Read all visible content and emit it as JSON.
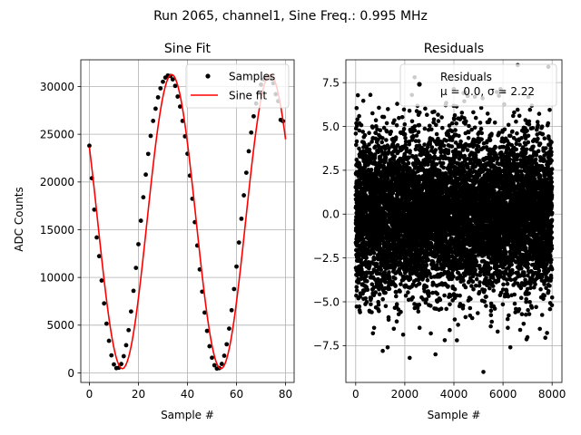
{
  "figure": {
    "suptitle": "Run 2065, channel1, Sine Freq.: 0.995 MHz"
  },
  "chart_data": [
    {
      "type": "line",
      "title": "Sine Fit",
      "xlabel": "Sample #",
      "ylabel": "ADC Counts",
      "xlim": [
        -3.5,
        83.5
      ],
      "ylim": [
        -1000,
        32800
      ],
      "xticks": [
        0,
        20,
        40,
        60,
        80
      ],
      "yticks": [
        0,
        5000,
        10000,
        15000,
        20000,
        25000,
        30000
      ],
      "xtick_labels": [
        "0",
        "20",
        "40",
        "60",
        "80"
      ],
      "ytick_labels": [
        "0",
        "5000",
        "10000",
        "15000",
        "20000",
        "25000",
        "30000"
      ],
      "grid": true,
      "legend": {
        "position": "top-right",
        "entries": [
          "Samples",
          "Sine fit"
        ]
      },
      "sine_model": {
        "amplitude": 15400,
        "offset": 15850,
        "period": 40.2,
        "phase_sample": 33.55,
        "x_range": [
          0,
          80
        ]
      },
      "series": [
        {
          "name": "Samples",
          "kind": "scatter",
          "color": "#000000",
          "x": [
            0,
            1,
            2,
            3,
            4,
            5,
            6,
            7,
            8,
            9,
            10,
            11,
            12,
            13,
            14,
            15,
            16,
            17,
            18,
            19,
            20,
            21,
            22,
            23,
            24,
            25,
            26,
            27,
            28,
            29,
            30,
            31,
            32,
            33,
            34,
            35,
            36,
            37,
            38,
            39,
            40,
            41,
            42,
            43,
            44,
            45,
            46,
            47,
            48,
            49,
            50,
            51,
            52,
            53,
            54,
            55,
            56,
            57,
            58,
            59,
            60,
            61,
            62,
            63,
            64,
            65,
            66,
            67,
            68,
            69,
            70,
            71,
            72,
            73,
            74,
            75,
            76,
            77,
            78,
            79
          ],
          "y": [
            23800,
            20390,
            17100,
            14190,
            12230,
            9680,
            7280,
            5160,
            3360,
            1840,
            890,
            500,
            540,
            930,
            1750,
            2900,
            4480,
            6430,
            8600,
            11000,
            13480,
            15940,
            18400,
            20770,
            22940,
            24830,
            26400,
            27680,
            28870,
            29810,
            30500,
            30940,
            31150,
            31100,
            30750,
            30070,
            28950,
            27900,
            26400,
            24780,
            22960,
            20670,
            18240,
            15790,
            13340,
            10840,
            8510,
            6320,
            4400,
            2790,
            1590,
            800,
            450,
            500,
            940,
            1800,
            3000,
            4640,
            6570,
            8780,
            11140,
            13660,
            16150,
            18600,
            20970,
            23220,
            25180,
            26880,
            28220,
            29320,
            30200,
            30750,
            30980,
            31000,
            30820,
            30350,
            29200,
            28470,
            26500,
            26370
          ]
        },
        {
          "name": "Sine fit",
          "kind": "line",
          "color": "#ff0000"
        }
      ]
    },
    {
      "type": "scatter",
      "title": "Residuals",
      "xlabel": "Sample #",
      "xlim": [
        -400,
        8400
      ],
      "ylim": [
        -9.6,
        8.8
      ],
      "xticks": [
        0,
        2000,
        4000,
        6000,
        8000
      ],
      "yticks": [
        -7.5,
        -5.0,
        -2.5,
        0.0,
        2.5,
        5.0,
        7.5
      ],
      "xtick_labels": [
        "0",
        "2000",
        "4000",
        "6000",
        "8000"
      ],
      "ytick_labels": [
        "−7.5",
        "−5.0",
        "−2.5",
        "0.0",
        "2.5",
        "5.0",
        "7.5"
      ],
      "grid": true,
      "legend": {
        "position": "top-right",
        "entries": [
          "Residuals",
          "μ = 0.0, σ = 2.22"
        ]
      },
      "series": [
        {
          "name": "Residuals",
          "color": "#000000",
          "mean": 0.0,
          "std": 2.22,
          "n_points": 8000,
          "x_range": [
            0,
            8000
          ],
          "outliers": [
            {
              "x": 5200,
              "y": -9.0
            },
            {
              "x": 2200,
              "y": -8.2
            },
            {
              "x": 3250,
              "y": -8.0
            },
            {
              "x": 1100,
              "y": -7.8
            },
            {
              "x": 1300,
              "y": -7.6
            },
            {
              "x": 6300,
              "y": -7.6
            },
            {
              "x": 700,
              "y": -6.8
            },
            {
              "x": 6700,
              "y": -6.6
            },
            {
              "x": 6600,
              "y": 8.5
            },
            {
              "x": 7850,
              "y": 8.4
            },
            {
              "x": 2400,
              "y": 7.8
            },
            {
              "x": 600,
              "y": 6.8
            }
          ]
        }
      ]
    }
  ]
}
